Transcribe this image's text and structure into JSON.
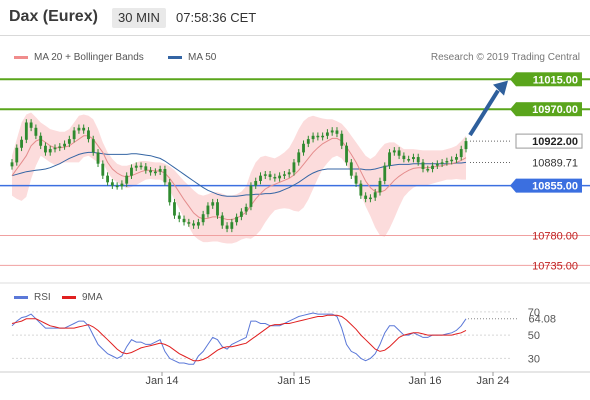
{
  "header": {
    "instrument": "Dax (Eurex)",
    "timeframe": "30 MIN",
    "time": "07:58:36 CET"
  },
  "legend": {
    "main": [
      {
        "name": "MA 20 + Bollinger Bands",
        "color": "#f08c8c"
      },
      {
        "name": "MA 50",
        "color": "#3465a4"
      }
    ],
    "rsi": [
      {
        "name": "RSI",
        "color": "#5b78d8"
      },
      {
        "name": "9MA",
        "color": "#e02020"
      }
    ]
  },
  "copyright": "Research © 2019 Trading Central",
  "colors": {
    "resistance": "#5aa51c",
    "support": "#3b6fe0",
    "target_support": "#f0a0a0",
    "candle": "#2f8a2f",
    "band_fill": "#fbd0d0",
    "arrow": "#2e5f9c"
  },
  "chart_data": [
    {
      "type": "candlestick",
      "x_ticks": [
        "Jan 14",
        "Jan 15",
        "Jan 16",
        "Jan 24"
      ],
      "ylim": [
        10710,
        11035
      ],
      "levels": [
        {
          "label": "11015.00",
          "value": 11015,
          "kind": "resistance"
        },
        {
          "label": "10970.00",
          "value": 10970,
          "kind": "resistance"
        },
        {
          "label": "10922.00",
          "value": 10922,
          "kind": "last-price"
        },
        {
          "label": "10889.71",
          "value": 10889.71,
          "kind": "reference"
        },
        {
          "label": "10855.00",
          "value": 10855,
          "kind": "pivot"
        },
        {
          "label": "10780.00",
          "value": 10780,
          "kind": "support"
        },
        {
          "label": "10735.00",
          "value": 10735,
          "kind": "support"
        }
      ],
      "close": [
        10890,
        10912,
        10924,
        10950,
        10942,
        10930,
        10915,
        10905,
        10910,
        10912,
        10914,
        10918,
        10925,
        10938,
        10942,
        10938,
        10925,
        10905,
        10888,
        10870,
        10860,
        10855,
        10854,
        10858,
        10870,
        10882,
        10885,
        10884,
        10878,
        10875,
        10876,
        10880,
        10860,
        10830,
        10810,
        10805,
        10800,
        10798,
        10795,
        10800,
        10812,
        10825,
        10830,
        10810,
        10795,
        10790,
        10800,
        10808,
        10816,
        10823,
        10855,
        10862,
        10870,
        10872,
        10868,
        10866,
        10870,
        10872,
        10875,
        10890,
        10905,
        10918,
        10925,
        10930,
        10928,
        10930,
        10935,
        10938,
        10933,
        10915,
        10890,
        10870,
        10858,
        10840,
        10835,
        10837,
        10845,
        10862,
        10885,
        10905,
        10908,
        10900,
        10895,
        10895,
        10898,
        10890,
        10880,
        10880,
        10885,
        10888,
        10890,
        10892,
        10894,
        10898,
        10910,
        10922
      ],
      "ma20": [
        10870,
        10880,
        10890,
        10900,
        10915,
        10922,
        10925,
        10920,
        10915,
        10912,
        10912,
        10913,
        10915,
        10920,
        10925,
        10930,
        10930,
        10925,
        10915,
        10905,
        10890,
        10880,
        10874,
        10870,
        10868,
        10870,
        10873,
        10876,
        10878,
        10878,
        10877,
        10877,
        10874,
        10866,
        10856,
        10845,
        10834,
        10824,
        10814,
        10808,
        10805,
        10806,
        10808,
        10808,
        10806,
        10804,
        10804,
        10806,
        10810,
        10815,
        10825,
        10835,
        10843,
        10850,
        10854,
        10857,
        10860,
        10863,
        10866,
        10871,
        10878,
        10887,
        10896,
        10905,
        10912,
        10918,
        10922,
        10926,
        10926,
        10922,
        10913,
        10902,
        10890,
        10876,
        10862,
        10852,
        10846,
        10845,
        10848,
        10855,
        10863,
        10869,
        10874,
        10878,
        10881,
        10882,
        10882,
        10882,
        10883,
        10884,
        10885,
        10887,
        10888,
        10890,
        10893,
        10897
      ],
      "bb_upper": [
        10900,
        10925,
        10950,
        10962,
        10965,
        10958,
        10950,
        10945,
        10940,
        10938,
        10936,
        10936,
        10940,
        10950,
        10960,
        10962,
        10960,
        10955,
        10940,
        10920,
        10905,
        10895,
        10888,
        10885,
        10885,
        10887,
        10890,
        10892,
        10892,
        10891,
        10890,
        10890,
        10888,
        10884,
        10878,
        10870,
        10862,
        10855,
        10848,
        10842,
        10840,
        10842,
        10845,
        10845,
        10843,
        10840,
        10840,
        10842,
        10846,
        10854,
        10875,
        10890,
        10898,
        10900,
        10898,
        10896,
        10900,
        10905,
        10912,
        10925,
        10940,
        10952,
        10958,
        10960,
        10958,
        10956,
        10955,
        10955,
        10952,
        10948,
        10940,
        10930,
        10920,
        10910,
        10900,
        10895,
        10900,
        10910,
        10918,
        10920,
        10920,
        10915,
        10910,
        10910,
        10910,
        10909,
        10908,
        10908,
        10908,
        10908,
        10908,
        10910,
        10912,
        10915,
        10922,
        10930
      ],
      "bb_lower": [
        10840,
        10835,
        10832,
        10838,
        10865,
        10885,
        10900,
        10895,
        10890,
        10886,
        10888,
        10890,
        10890,
        10890,
        10890,
        10898,
        10900,
        10895,
        10890,
        10890,
        10875,
        10865,
        10860,
        10855,
        10851,
        10853,
        10856,
        10860,
        10864,
        10865,
        10864,
        10864,
        10860,
        10848,
        10834,
        10820,
        10806,
        10793,
        10780,
        10774,
        10770,
        10770,
        10771,
        10771,
        10769,
        10768,
        10768,
        10770,
        10774,
        10776,
        10775,
        10780,
        10788,
        10800,
        10810,
        10818,
        10820,
        10821,
        10820,
        10817,
        10816,
        10822,
        10834,
        10850,
        10866,
        10880,
        10889,
        10897,
        10900,
        10896,
        10886,
        10874,
        10860,
        10842,
        10824,
        10809,
        10792,
        10780,
        10778,
        10790,
        10806,
        10823,
        10838,
        10846,
        10852,
        10855,
        10856,
        10856,
        10858,
        10860,
        10862,
        10864,
        10864,
        10865,
        10864,
        10864
      ],
      "ma50": [
        10870,
        10872,
        10874,
        10876,
        10877,
        10878,
        10879,
        10880,
        10882,
        10885,
        10888,
        10892,
        10896,
        10899,
        10902,
        10904,
        10905,
        10905,
        10904,
        10903,
        10902,
        10902,
        10902,
        10902,
        10902,
        10903,
        10903,
        10902,
        10901,
        10900,
        10898,
        10896,
        10892,
        10887,
        10882,
        10877,
        10872,
        10867,
        10862,
        10857,
        10852,
        10848,
        10845,
        10842,
        10840,
        10839,
        10839,
        10839,
        10840,
        10841,
        10841,
        10842,
        10842,
        10843,
        10843,
        10844,
        10846,
        10849,
        10852,
        10856,
        10860,
        10865,
        10870,
        10874,
        10877,
        10879,
        10880,
        10880,
        10880,
        10880,
        10880,
        10880,
        10880,
        10880,
        10879,
        10879,
        10880,
        10882,
        10884,
        10885,
        10886,
        10887,
        10887,
        10887,
        10888,
        10888,
        10888,
        10888,
        10888,
        10888,
        10888,
        10888,
        10888,
        10889,
        10889,
        10890
      ]
    },
    {
      "type": "line",
      "name": "RSI",
      "ylim": [
        20,
        75
      ],
      "ticks": [
        30,
        50,
        70
      ],
      "last_value": 64.08,
      "rsi": [
        58,
        62,
        65,
        66,
        68,
        64,
        60,
        56,
        56,
        56,
        56,
        56,
        58,
        60,
        62,
        62,
        58,
        50,
        42,
        38,
        34,
        32,
        30,
        32,
        40,
        46,
        44,
        44,
        42,
        42,
        44,
        46,
        36,
        30,
        28,
        26,
        26,
        25,
        25,
        32,
        36,
        42,
        48,
        46,
        40,
        38,
        42,
        44,
        46,
        48,
        62,
        62,
        60,
        60,
        58,
        58,
        58,
        60,
        62,
        64,
        66,
        67,
        68,
        69,
        68,
        68,
        68,
        68,
        66,
        56,
        42,
        36,
        34,
        30,
        28,
        30,
        34,
        42,
        52,
        58,
        58,
        54,
        50,
        50,
        52,
        50,
        48,
        48,
        50,
        50,
        50,
        51,
        52,
        54,
        58,
        64
      ],
      "ma9": [
        60,
        61,
        62,
        64,
        64,
        64,
        62,
        60,
        58,
        57,
        56,
        56,
        56,
        56,
        57,
        58,
        59,
        57,
        54,
        50,
        46,
        42,
        38,
        35,
        34,
        35,
        37,
        39,
        40,
        41,
        42,
        43,
        42,
        40,
        37,
        34,
        32,
        30,
        28,
        28,
        29,
        31,
        34,
        37,
        39,
        40,
        40,
        41,
        42,
        43,
        46,
        49,
        52,
        55,
        58,
        59,
        59,
        60,
        60,
        61,
        62,
        63,
        64,
        65,
        66,
        66,
        67,
        67,
        67,
        66,
        63,
        59,
        55,
        50,
        46,
        42,
        38,
        36,
        37,
        40,
        44,
        48,
        50,
        51,
        52,
        52,
        51,
        50,
        50,
        50,
        50,
        50,
        50,
        51,
        52,
        54
      ]
    }
  ]
}
